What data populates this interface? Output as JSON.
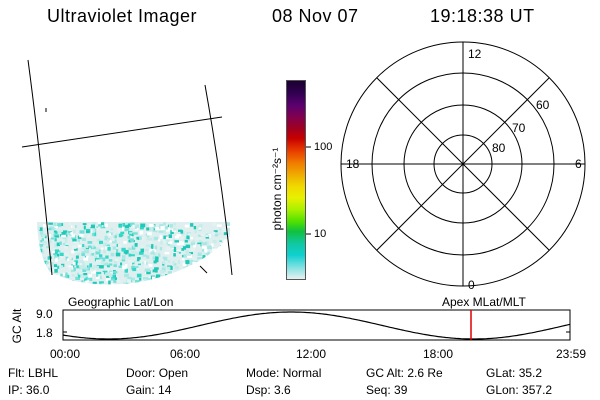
{
  "header": {
    "instrument": "Ultraviolet Imager",
    "date": "08 Nov 07",
    "time": "19:18:38 UT"
  },
  "colorbar": {
    "unit_label": "photon cm⁻²s⁻¹",
    "ticks": [
      "100",
      "10"
    ],
    "colors": [
      "#1a0030",
      "#300050",
      "#5a0070",
      "#800050",
      "#a00020",
      "#c80000",
      "#e83a00",
      "#f07800",
      "#f0a800",
      "#f0d800",
      "#e8f000",
      "#a8f000",
      "#50e000",
      "#10c040",
      "#10c8a0",
      "#10d0d0",
      "#80e0e0",
      "#e8f0f0"
    ]
  },
  "polar_plot": {
    "labels": {
      "top": "12",
      "bottom": "0",
      "left": "18",
      "right": "6"
    },
    "lat_labels": [
      "60",
      "70",
      "80"
    ]
  },
  "panel_labels": {
    "left": "Geographic Lat/Lon",
    "right": "Apex MLat/MLT"
  },
  "altitude_plot": {
    "ylabel": "GC Alt",
    "yticks": [
      "9.0",
      "1.8"
    ],
    "xticks": [
      "00:00",
      "06:00",
      "12:00",
      "18:00",
      "23:59"
    ],
    "current_time_fraction": 0.8047
  },
  "status": {
    "row1": [
      {
        "label": "Flt:",
        "value": "LBHL"
      },
      {
        "label": "Door:",
        "value": "Open"
      },
      {
        "label": "Mode:",
        "value": "Normal"
      },
      {
        "label": "GC Alt:",
        "value": "2.6 Re"
      },
      {
        "label": "GLat:",
        "value": "35.2"
      }
    ],
    "row2": [
      {
        "label": "IP:",
        "value": "36.0"
      },
      {
        "label": "Gain:",
        "value": "14"
      },
      {
        "label": "Dsp:",
        "value": "3.6"
      },
      {
        "label": "Seq:",
        "value": "39"
      },
      {
        "label": "GLon:",
        "value": "357.2"
      }
    ]
  }
}
